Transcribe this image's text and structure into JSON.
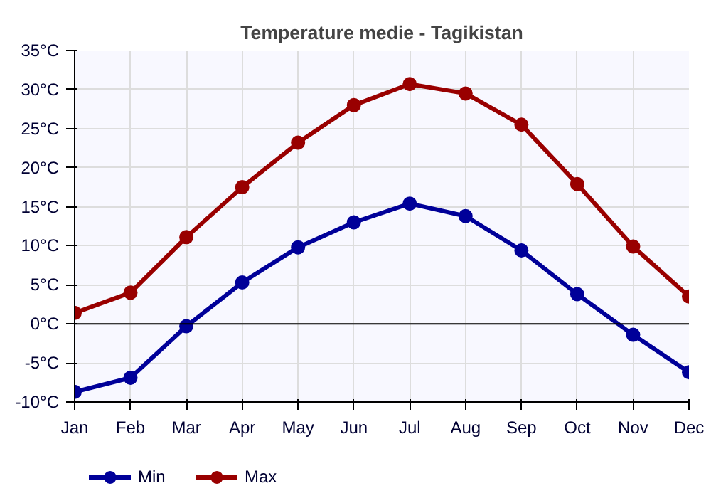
{
  "chart_data": {
    "type": "line",
    "title": "Temperature medie - Tagikistan",
    "categories": [
      "Jan",
      "Feb",
      "Mar",
      "Apr",
      "May",
      "Jun",
      "Jul",
      "Aug",
      "Sep",
      "Oct",
      "Nov",
      "Dec"
    ],
    "series": [
      {
        "name": "Min",
        "color": "#000099",
        "values": [
          -8.7,
          -6.9,
          -0.3,
          5.3,
          9.8,
          13.0,
          15.4,
          13.8,
          9.4,
          3.8,
          -1.4,
          -6.2
        ]
      },
      {
        "name": "Max",
        "color": "#990000",
        "values": [
          1.4,
          4.0,
          11.1,
          17.5,
          23.2,
          28.0,
          30.7,
          29.5,
          25.5,
          17.9,
          9.9,
          3.5
        ]
      }
    ],
    "ylim": [
      -10,
      35
    ],
    "yticks": [
      {
        "value": -10,
        "label": "-10°C"
      },
      {
        "value": -5,
        "label": "-5°C"
      },
      {
        "value": 0,
        "label": "0°C"
      },
      {
        "value": 5,
        "label": "5°C"
      },
      {
        "value": 10,
        "label": "10°C"
      },
      {
        "value": 15,
        "label": "15°C"
      },
      {
        "value": 20,
        "label": "20°C"
      },
      {
        "value": 25,
        "label": "25°C"
      },
      {
        "value": 30,
        "label": "30°C"
      },
      {
        "value": 35,
        "label": "35°C"
      }
    ],
    "ref_lines": [
      {
        "axis": "y",
        "value": 0,
        "color": "#000000"
      }
    ],
    "grid": true,
    "legend": "bottom left",
    "marker": "circle",
    "line_style": "solid"
  }
}
